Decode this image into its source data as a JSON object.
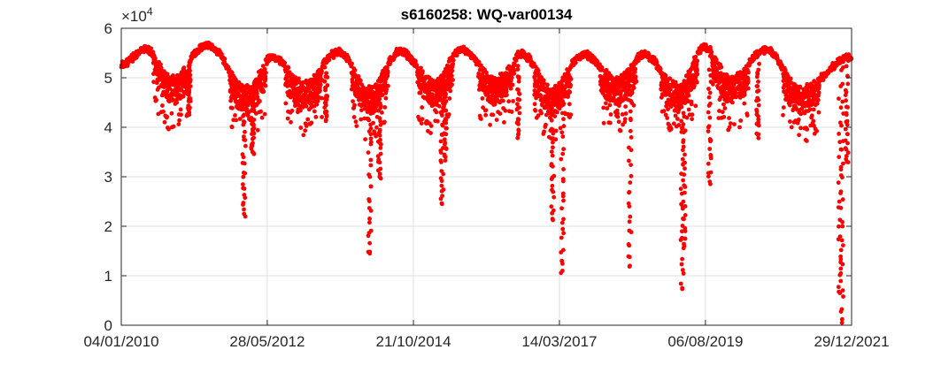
{
  "chart_data": {
    "type": "scatter",
    "title": "s6160258: WQ-var00134",
    "xlabel": "",
    "ylabel": "",
    "x_range": [
      "04/01/2010",
      "29/12/2021"
    ],
    "x_ticks": [
      "04/01/2010",
      "28/05/2012",
      "21/10/2014",
      "14/03/2017",
      "06/08/2019",
      "29/12/2021"
    ],
    "ylim": [
      0,
      60000
    ],
    "y_ticks": [
      0,
      1,
      2,
      3,
      4,
      5,
      6
    ],
    "y_exponent_label": "×10",
    "y_exponent_power": "4",
    "grid": true,
    "series_color": "#ff0000",
    "seasonal_envelope": {
      "peaks": [
        {
          "date": "04/01/2010",
          "value": 53000
        },
        {
          "date": "01/06/2010",
          "value": 56000
        },
        {
          "date": "01/06/2011",
          "value": 57000
        },
        {
          "date": "01/07/2012",
          "value": 54500
        },
        {
          "date": "01/08/2013",
          "value": 55500
        },
        {
          "date": "01/08/2014",
          "value": 55500
        },
        {
          "date": "01/08/2015",
          "value": 56000
        },
        {
          "date": "01/08/2016",
          "value": 55000
        },
        {
          "date": "01/08/2017",
          "value": 55000
        },
        {
          "date": "01/08/2018",
          "value": 55000
        },
        {
          "date": "01/08/2019",
          "value": 56500
        },
        {
          "date": "01/08/2020",
          "value": 56000
        },
        {
          "date": "29/12/2021",
          "value": 54500
        }
      ],
      "troughs": [
        {
          "date": "01/11/2010",
          "value": 50000
        },
        {
          "date": "01/02/2012",
          "value": 48000
        },
        {
          "date": "01/01/2013",
          "value": 49000
        },
        {
          "date": "01/02/2014",
          "value": 48000
        },
        {
          "date": "01/03/2015",
          "value": 49500
        },
        {
          "date": "01/03/2016",
          "value": 50000
        },
        {
          "date": "01/02/2017",
          "value": 48000
        },
        {
          "date": "01/03/2018",
          "value": 50000
        },
        {
          "date": "01/03/2019",
          "value": 48500
        },
        {
          "date": "01/01/2020",
          "value": 50000
        },
        {
          "date": "01/03/2021",
          "value": 48000
        }
      ]
    },
    "dips": [
      {
        "date": "15/02/2011",
        "value": 43000
      },
      {
        "date": "10/01/2012",
        "value": 22500
      },
      {
        "date": "01/03/2012",
        "value": 35000
      },
      {
        "date": "15/05/2013",
        "value": 41500
      },
      {
        "date": "01/02/2014",
        "value": 14500
      },
      {
        "date": "01/04/2014",
        "value": 30000
      },
      {
        "date": "10/04/2015",
        "value": 24500
      },
      {
        "date": "01/05/2015",
        "value": 34000
      },
      {
        "date": "10/07/2016",
        "value": 38500
      },
      {
        "date": "01/02/2017",
        "value": 21500
      },
      {
        "date": "01/04/2017",
        "value": 11000
      },
      {
        "date": "10/05/2018",
        "value": 12000
      },
      {
        "date": "20/03/2019",
        "value": 7500
      },
      {
        "date": "01/04/2019",
        "value": 16000
      },
      {
        "date": "01/09/2019",
        "value": 29000
      },
      {
        "date": "15/06/2020",
        "value": 38500
      },
      {
        "date": "20/10/2021",
        "value": 6500
      },
      {
        "date": "01/11/2021",
        "value": 500
      },
      {
        "date": "01/12/2021",
        "value": 33000
      }
    ]
  }
}
